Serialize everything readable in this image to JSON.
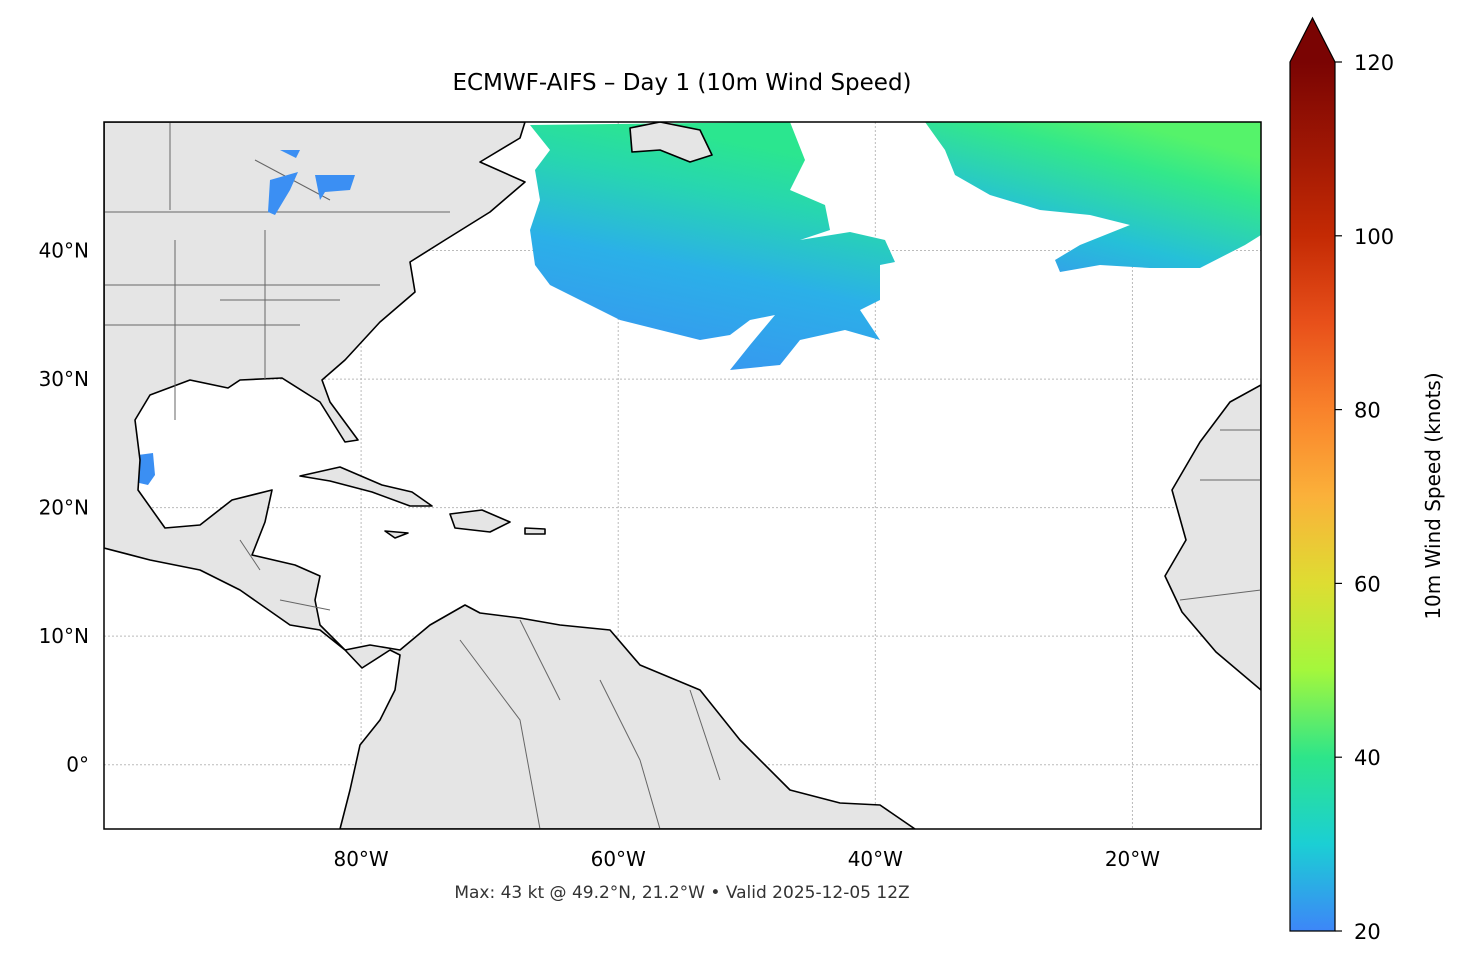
{
  "map": {
    "title": "ECMWF-AIFS – Day 1 (10m Wind Speed)",
    "lonlim": [
      -100,
      -10
    ],
    "latlim": [
      -5,
      50
    ],
    "lon_ticks": [
      {
        "value": -80,
        "label": "80°W"
      },
      {
        "value": -60,
        "label": "60°W"
      },
      {
        "value": -40,
        "label": "40°W"
      },
      {
        "value": -20,
        "label": "20°W"
      }
    ],
    "lat_ticks": [
      {
        "value": 0,
        "label": "0°"
      },
      {
        "value": 10,
        "label": "10°N"
      },
      {
        "value": 20,
        "label": "20°N"
      },
      {
        "value": 30,
        "label": "30°N"
      },
      {
        "value": 40,
        "label": "40°N"
      }
    ],
    "grid": true,
    "colorbar": {
      "label": "10m Wind Speed (knots)",
      "lim": [
        20,
        120
      ],
      "ticks": [
        20,
        40,
        60,
        80,
        100,
        120
      ]
    },
    "footer": "Max: 43 kt @ 49.2°N, 21.2°W • Valid 2025-12-05 12Z"
  }
}
